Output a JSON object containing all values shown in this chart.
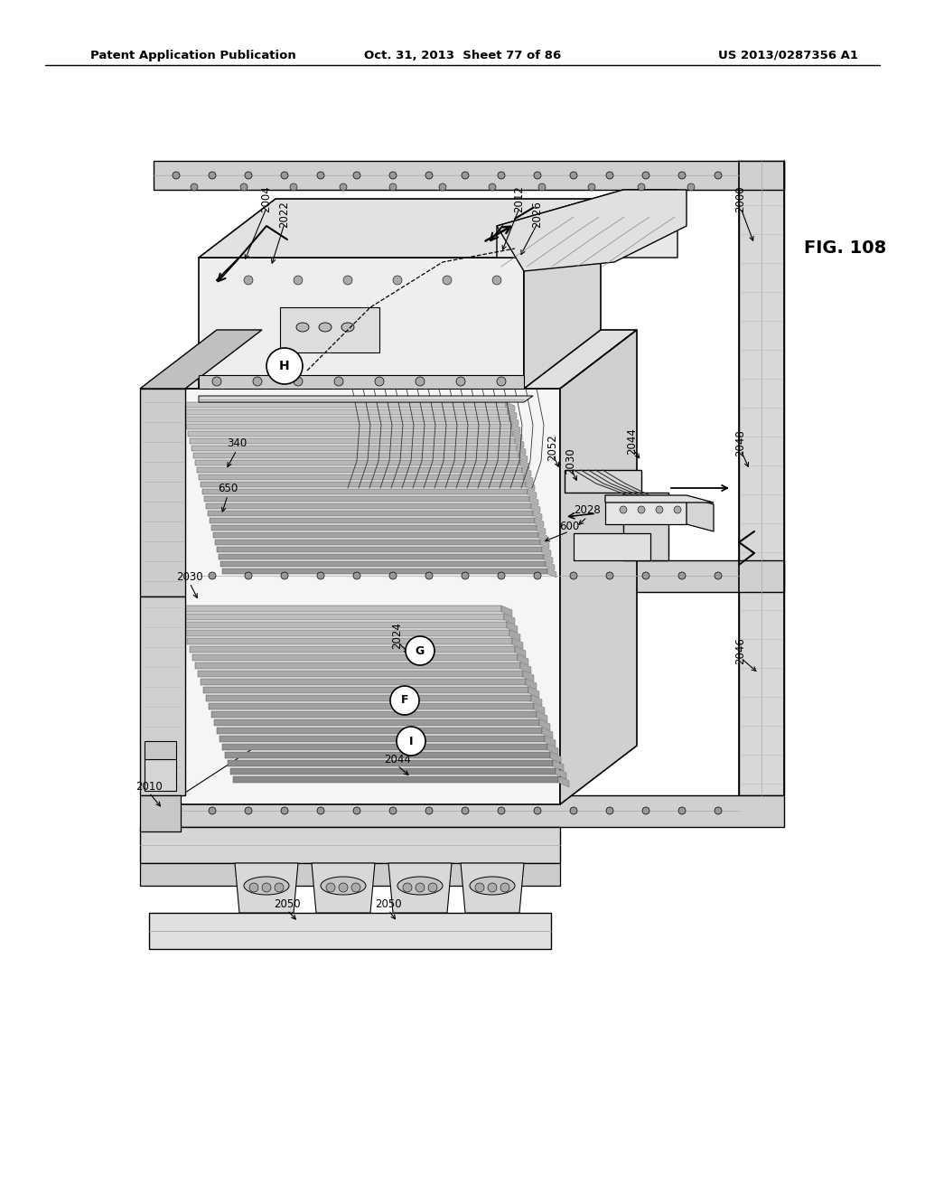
{
  "header_left": "Patent Application Publication",
  "header_center": "Oct. 31, 2013  Sheet 77 of 86",
  "header_right": "US 2013/0287356 A1",
  "fig_label": "FIG. 108",
  "bg": "#ffffff",
  "lc": "#000000",
  "gray1": "#e8e8e8",
  "gray2": "#d4d4d4",
  "gray3": "#c0c0c0",
  "gray4": "#aaaaaa",
  "gray5": "#888888",
  "gray_dark": "#555555"
}
